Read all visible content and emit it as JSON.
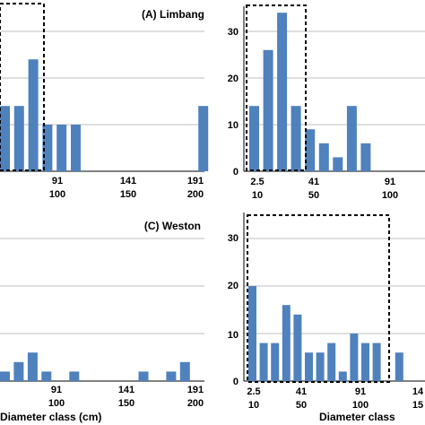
{
  "chart_data": [
    {
      "panel": "A",
      "type": "bar",
      "title": "(A) Limbang",
      "y_ticks": [],
      "x_tick_labels": [
        {
          "top": "91",
          "bottom": "100"
        },
        {
          "top": "141",
          "bottom": "150"
        },
        {
          "top": "191",
          "bottom": "200"
        }
      ],
      "xlabel": "",
      "bars": [
        {
          "x": 1,
          "value": 14
        },
        {
          "x": 2,
          "value": 14
        },
        {
          "x": 3,
          "value": 24
        },
        {
          "x": 4,
          "value": 10
        },
        {
          "x": 5,
          "value": 10
        },
        {
          "x": 6,
          "value": 10
        },
        {
          "x": 15,
          "value": 14
        }
      ],
      "highlight": "dashed box over bars 1–3",
      "colors": {
        "bar": "#4f81bd",
        "grid": "#bfbfbf"
      }
    },
    {
      "panel": "B",
      "type": "bar",
      "title": "",
      "y_ticks": [
        "0",
        "10",
        "20",
        "30"
      ],
      "x_tick_labels": [
        {
          "top": "2.5",
          "bottom": "10"
        },
        {
          "top": "41",
          "bottom": "50"
        },
        {
          "top": "91",
          "bottom": "100"
        }
      ],
      "xlabel": "",
      "bars": [
        {
          "x": 1,
          "value": 14
        },
        {
          "x": 2,
          "value": 26
        },
        {
          "x": 3,
          "value": 34
        },
        {
          "x": 4,
          "value": 14
        },
        {
          "x": 5,
          "value": 9
        },
        {
          "x": 6,
          "value": 6
        },
        {
          "x": 7,
          "value": 3
        },
        {
          "x": 8,
          "value": 14
        },
        {
          "x": 9,
          "value": 6
        }
      ],
      "highlight": "dashed box over bars 1–4",
      "colors": {
        "bar": "#4f81bd",
        "grid": "#bfbfbf"
      }
    },
    {
      "panel": "C",
      "type": "bar",
      "title": "(C) Weston",
      "y_ticks": [],
      "x_tick_labels": [
        {
          "top": "91",
          "bottom": "100"
        },
        {
          "top": "141",
          "bottom": "150"
        },
        {
          "top": "191",
          "bottom": "200"
        }
      ],
      "xlabel": "Diameter class (cm)",
      "bars": [
        {
          "x": 1,
          "value": 2
        },
        {
          "x": 2,
          "value": 4
        },
        {
          "x": 3,
          "value": 6
        },
        {
          "x": 4,
          "value": 2
        },
        {
          "x": 6,
          "value": 2
        },
        {
          "x": 11,
          "value": 2
        },
        {
          "x": 13,
          "value": 2
        },
        {
          "x": 14,
          "value": 4
        }
      ],
      "colors": {
        "bar": "#4f81bd",
        "grid": "#bfbfbf"
      }
    },
    {
      "panel": "D",
      "type": "bar",
      "title": "",
      "y_ticks": [
        "0",
        "10",
        "20",
        "30"
      ],
      "x_tick_labels": [
        {
          "top": "2.5",
          "bottom": "10"
        },
        {
          "top": "41",
          "bottom": "50"
        },
        {
          "top": "91",
          "bottom": "100"
        },
        {
          "top": "14",
          "bottom": "15"
        }
      ],
      "xlabel": "Diameter class",
      "bars": [
        {
          "x": 1,
          "value": 20
        },
        {
          "x": 2,
          "value": 8
        },
        {
          "x": 3,
          "value": 8
        },
        {
          "x": 4,
          "value": 16
        },
        {
          "x": 5,
          "value": 14
        },
        {
          "x": 6,
          "value": 6
        },
        {
          "x": 7,
          "value": 6
        },
        {
          "x": 8,
          "value": 8
        },
        {
          "x": 9,
          "value": 2
        },
        {
          "x": 10,
          "value": 10
        },
        {
          "x": 11,
          "value": 8
        },
        {
          "x": 12,
          "value": 8
        },
        {
          "x": 14,
          "value": 6
        }
      ],
      "highlight": "dashed box over bars 1–12",
      "colors": {
        "bar": "#4f81bd",
        "grid": "#bfbfbf"
      }
    }
  ]
}
